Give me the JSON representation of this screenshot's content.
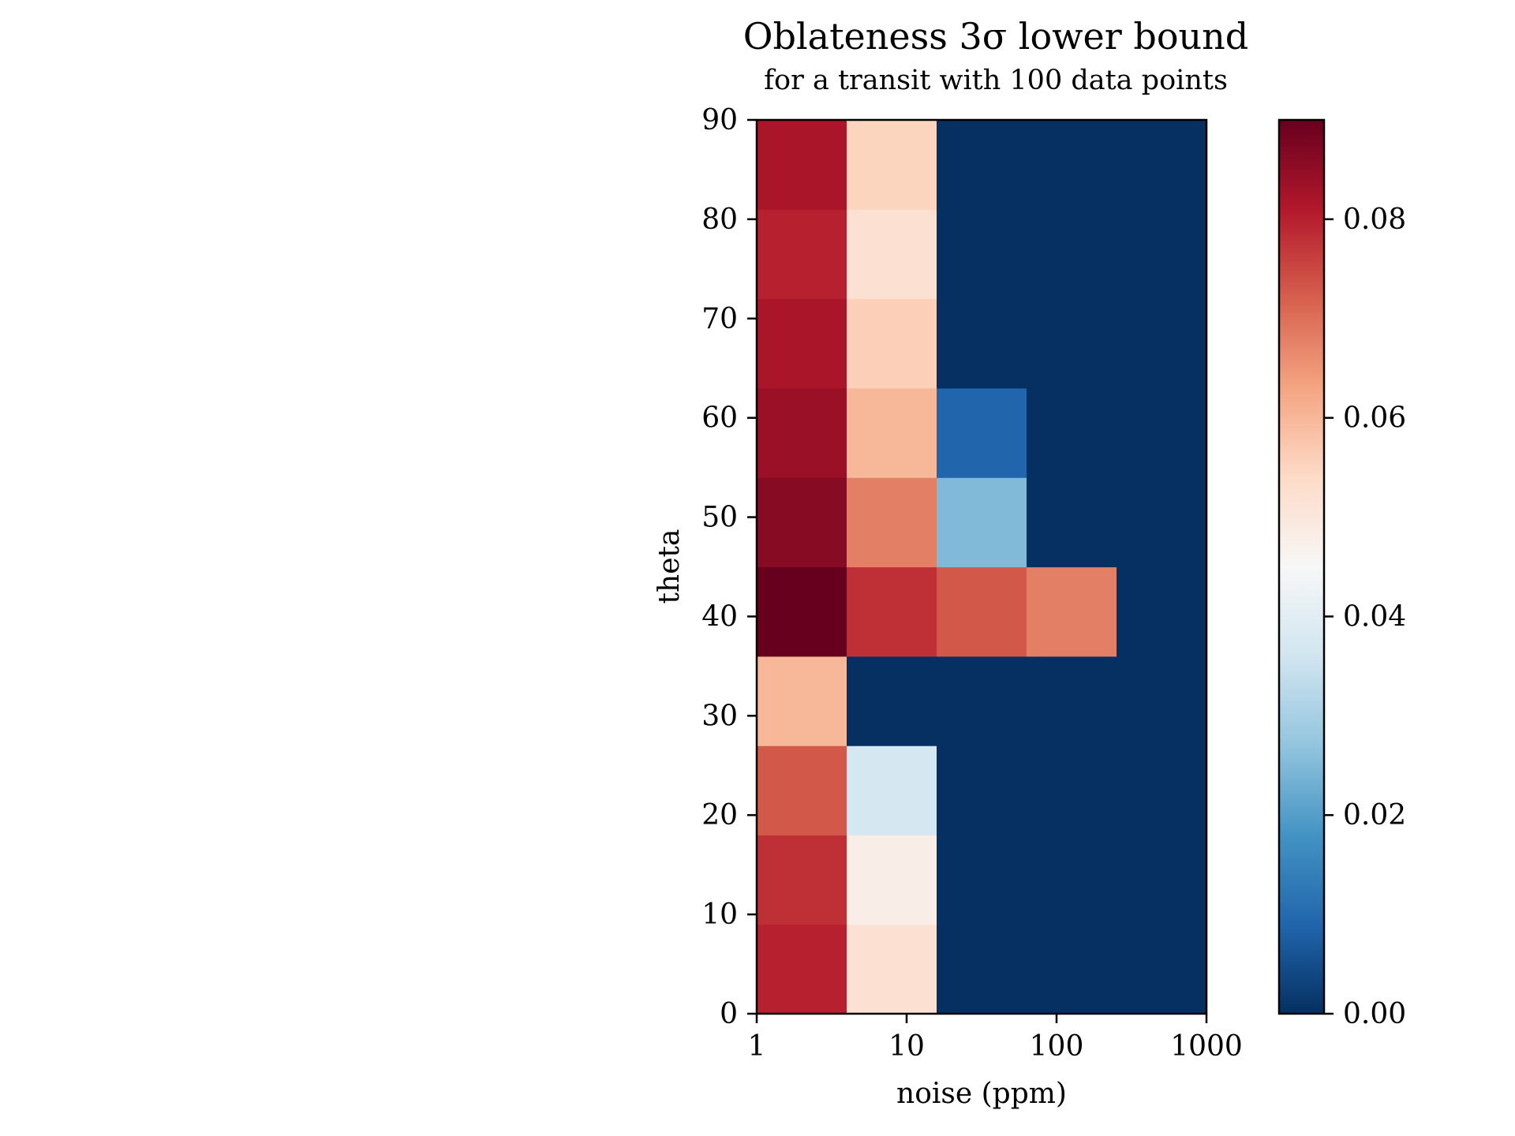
{
  "chart_data": {
    "type": "heatmap",
    "title": "Oblateness 3σ lower bound",
    "subtitle": "for a transit with 100 data points",
    "xlabel": "noise (ppm)",
    "ylabel": "theta",
    "x_scale": "log",
    "xlim": [
      1,
      1000
    ],
    "ylim": [
      0,
      90
    ],
    "x_ticks": [
      1,
      10,
      100,
      1000
    ],
    "x_tick_labels": [
      "1",
      "10",
      "100",
      "1000"
    ],
    "y_ticks": [
      0,
      10,
      20,
      30,
      40,
      50,
      60,
      70,
      80,
      90
    ],
    "y_tick_labels": [
      "0",
      "10",
      "20",
      "30",
      "40",
      "50",
      "60",
      "70",
      "80",
      "90"
    ],
    "colormap": "RdBu_r",
    "colorbar": {
      "vmin": 0.0,
      "vmax": 0.09,
      "ticks": [
        0.0,
        0.02,
        0.04,
        0.06,
        0.08
      ],
      "tick_labels": [
        "0.00",
        "0.02",
        "0.04",
        "0.06",
        "0.08"
      ]
    },
    "columns_noise_ppm": [
      1,
      4.6,
      21.5,
      100,
      464
    ],
    "rows_theta": [
      0,
      10,
      20,
      30,
      40,
      50,
      60,
      70,
      80,
      90
    ],
    "values": [
      [
        0.08,
        0.052,
        0.0,
        0.0,
        0.0
      ],
      [
        0.078,
        0.048,
        0.0,
        0.0,
        0.0
      ],
      [
        0.073,
        0.037,
        0.0,
        0.0,
        0.0
      ],
      [
        0.06,
        0.0,
        0.0,
        0.0,
        0.0
      ],
      [
        0.09,
        0.078,
        0.073,
        0.068,
        0.0
      ],
      [
        0.086,
        0.068,
        0.025,
        0.0,
        0.0
      ],
      [
        0.084,
        0.06,
        0.009,
        0.0,
        0.0
      ],
      [
        0.082,
        0.056,
        0.0,
        0.0,
        0.0
      ],
      [
        0.08,
        0.052,
        0.0,
        0.0,
        0.0
      ],
      [
        0.082,
        0.055,
        0.0,
        0.0,
        0.0
      ]
    ]
  }
}
